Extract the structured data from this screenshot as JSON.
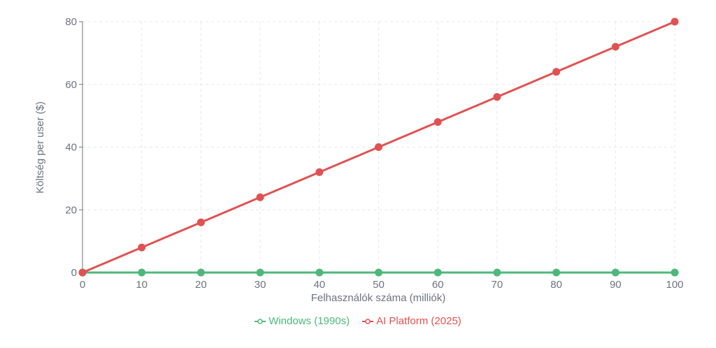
{
  "chart_data": {
    "type": "line",
    "title": "",
    "xlabel": "Felhasználók száma (milliók)",
    "ylabel": "Költség per user ($)",
    "x": [
      0,
      10,
      20,
      30,
      40,
      50,
      60,
      70,
      80,
      90,
      100
    ],
    "xlim": [
      0,
      100
    ],
    "ylim": [
      0,
      80
    ],
    "x_ticks": [
      "0",
      "10",
      "20",
      "30",
      "40",
      "50",
      "60",
      "70",
      "80",
      "90",
      "100"
    ],
    "y_ticks": [
      "0",
      "20",
      "40",
      "60",
      "80"
    ],
    "grid": true,
    "legend_position": "bottom-center",
    "series": [
      {
        "name": "Windows (1990s)",
        "color": "#4cb87a",
        "values": [
          0,
          0,
          0,
          0,
          0,
          0,
          0,
          0,
          0,
          0,
          0
        ]
      },
      {
        "name": "AI Platform (2025)",
        "color": "#e05252",
        "values": [
          0,
          8,
          16,
          24,
          32,
          40,
          48,
          56,
          64,
          72,
          80
        ]
      }
    ]
  }
}
